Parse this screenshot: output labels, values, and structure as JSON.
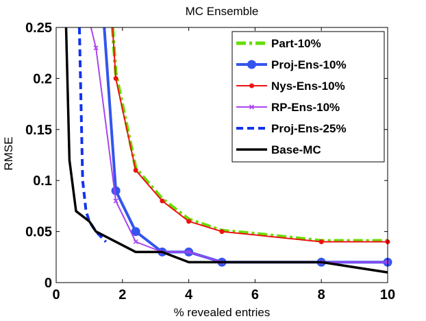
{
  "chart_data": {
    "type": "line",
    "title": "MC Ensemble",
    "xlabel": "% revealed entries",
    "ylabel": "RMSE",
    "xlim": [
      0,
      10
    ],
    "ylim": [
      0,
      0.25
    ],
    "xticks": [
      0,
      2,
      4,
      6,
      8,
      10
    ],
    "yticks": [
      0,
      0.05,
      0.1,
      0.15,
      0.2,
      0.25
    ],
    "xtick_labels": [
      "0",
      "2",
      "4",
      "6",
      "8",
      "10"
    ],
    "ytick_labels": [
      "0",
      "0.05",
      "0.1",
      "0.15",
      "0.2",
      "0.25"
    ],
    "grid": false,
    "legend_position": "top-right",
    "series": [
      {
        "name": "Part-10%",
        "color": "#66dd00",
        "dash": "dashdot",
        "width": 5,
        "marker": "none",
        "x": [
          1.7,
          1.8,
          2.4,
          3.2,
          4,
          5,
          6,
          8,
          10
        ],
        "y": [
          0.25,
          0.205,
          0.112,
          0.082,
          0.062,
          0.051,
          0.048,
          0.041,
          0.041
        ]
      },
      {
        "name": "Proj-Ens-10%",
        "color": "#3355ee",
        "dash": "solid",
        "width": 4,
        "marker": "circle",
        "x": [
          1.45,
          1.8,
          2.4,
          3.2,
          4,
          5,
          8,
          10
        ],
        "y": [
          0.25,
          0.09,
          0.05,
          0.03,
          0.03,
          0.02,
          0.02,
          0.02
        ]
      },
      {
        "name": "Nys-Ens-10%",
        "color": "#ee1111",
        "dash": "solid",
        "width": 2,
        "marker": "dot",
        "x": [
          1.7,
          1.8,
          2.4,
          3.2,
          4,
          5,
          8,
          10
        ],
        "y": [
          0.25,
          0.2,
          0.11,
          0.08,
          0.06,
          0.05,
          0.04,
          0.04
        ]
      },
      {
        "name": "RP-Ens-10%",
        "color": "#aa44ee",
        "dash": "solid",
        "width": 2,
        "marker": "x",
        "x": [
          1.05,
          1.2,
          1.8,
          2.4,
          3.2,
          4,
          5,
          8,
          10
        ],
        "y": [
          0.25,
          0.23,
          0.08,
          0.04,
          0.03,
          0.03,
          0.02,
          0.02,
          0.02
        ]
      },
      {
        "name": "Proj-Ens-25%",
        "color": "#1133ee",
        "dash": "dashed",
        "width": 4,
        "marker": "none",
        "x": [
          0.7,
          0.8,
          0.9,
          1.0,
          1.2,
          1.5
        ],
        "y": [
          0.25,
          0.1,
          0.07,
          0.06,
          0.05,
          0.04
        ]
      },
      {
        "name": "Base-MC",
        "color": "#000000",
        "dash": "solid",
        "width": 3.5,
        "marker": "none",
        "x": [
          0.3,
          0.4,
          0.6,
          1.0,
          1.2,
          2.4,
          3.2,
          4,
          5,
          8,
          10
        ],
        "y": [
          0.25,
          0.12,
          0.07,
          0.06,
          0.05,
          0.03,
          0.03,
          0.02,
          0.02,
          0.02,
          0.01
        ]
      }
    ]
  }
}
